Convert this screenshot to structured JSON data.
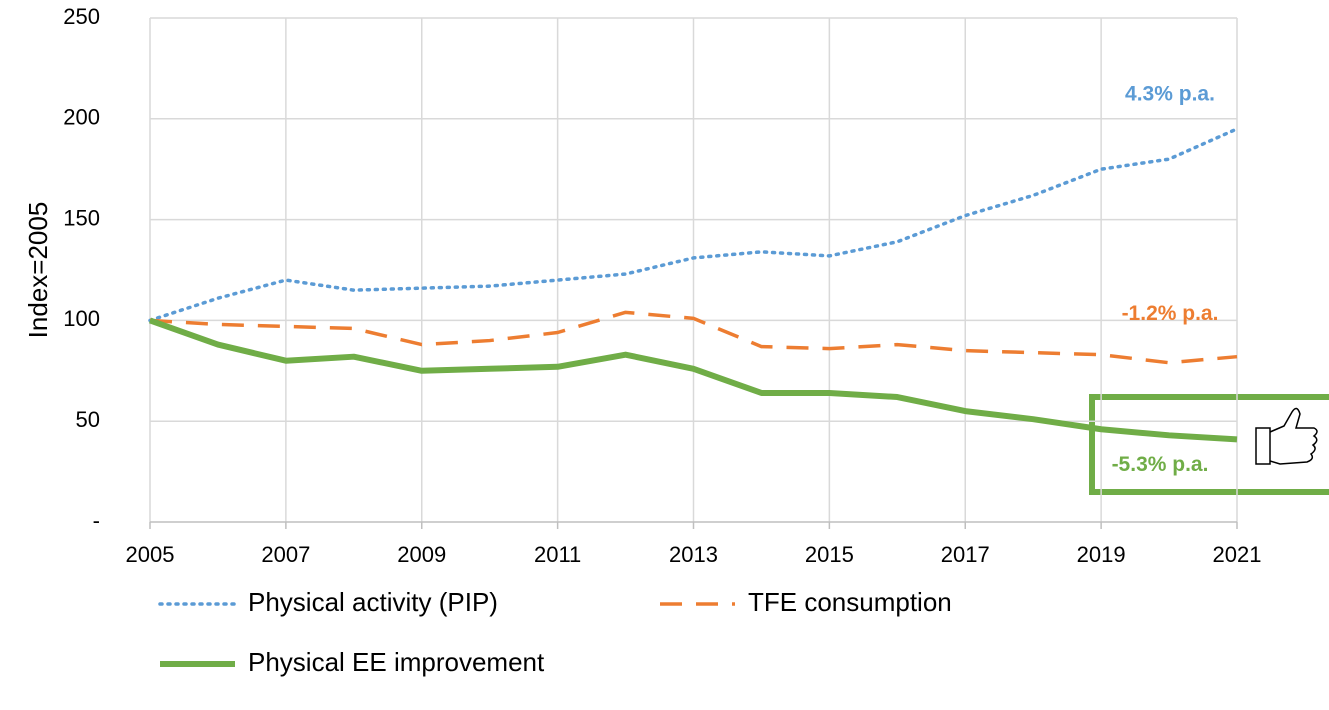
{
  "chart_data": {
    "type": "line",
    "y_label": "Index=2005",
    "x": [
      2005,
      2006,
      2007,
      2008,
      2009,
      2010,
      2011,
      2012,
      2013,
      2014,
      2015,
      2016,
      2017,
      2018,
      2019,
      2020,
      2021
    ],
    "xlim": [
      2005,
      2021
    ],
    "xticks": [
      2005,
      2007,
      2009,
      2011,
      2013,
      2015,
      2017,
      2019,
      2021
    ],
    "ylim": [
      0,
      250
    ],
    "yticks": [
      {
        "value": 0,
        "label": "-"
      },
      50,
      100,
      150,
      200,
      250
    ],
    "grid": true,
    "legend": "bottom",
    "series": [
      {
        "name": "Physical activity (PIP)",
        "color": "#5b9bd5",
        "dash": "dotted",
        "annotation": "4.3% p.a.",
        "values": [
          100,
          111,
          120,
          115,
          116,
          117,
          120,
          123,
          131,
          134,
          132,
          139,
          152,
          162,
          175,
          180,
          195
        ]
      },
      {
        "name": "TFE consumption",
        "color": "#ed7d31",
        "dash": "dashed",
        "annotation": "-1.2% p.a.",
        "values": [
          100,
          98,
          97,
          96,
          88,
          90,
          94,
          104,
          101,
          87,
          86,
          88,
          85,
          84,
          83,
          79,
          82
        ]
      },
      {
        "name": "Physical EE improvement",
        "color": "#70ad47",
        "dash": "solid",
        "annotation": "-5.3% p.a.",
        "values": [
          100,
          88,
          80,
          82,
          75,
          76,
          77,
          83,
          76,
          64,
          64,
          62,
          55,
          51,
          46,
          43,
          41
        ]
      }
    ]
  }
}
